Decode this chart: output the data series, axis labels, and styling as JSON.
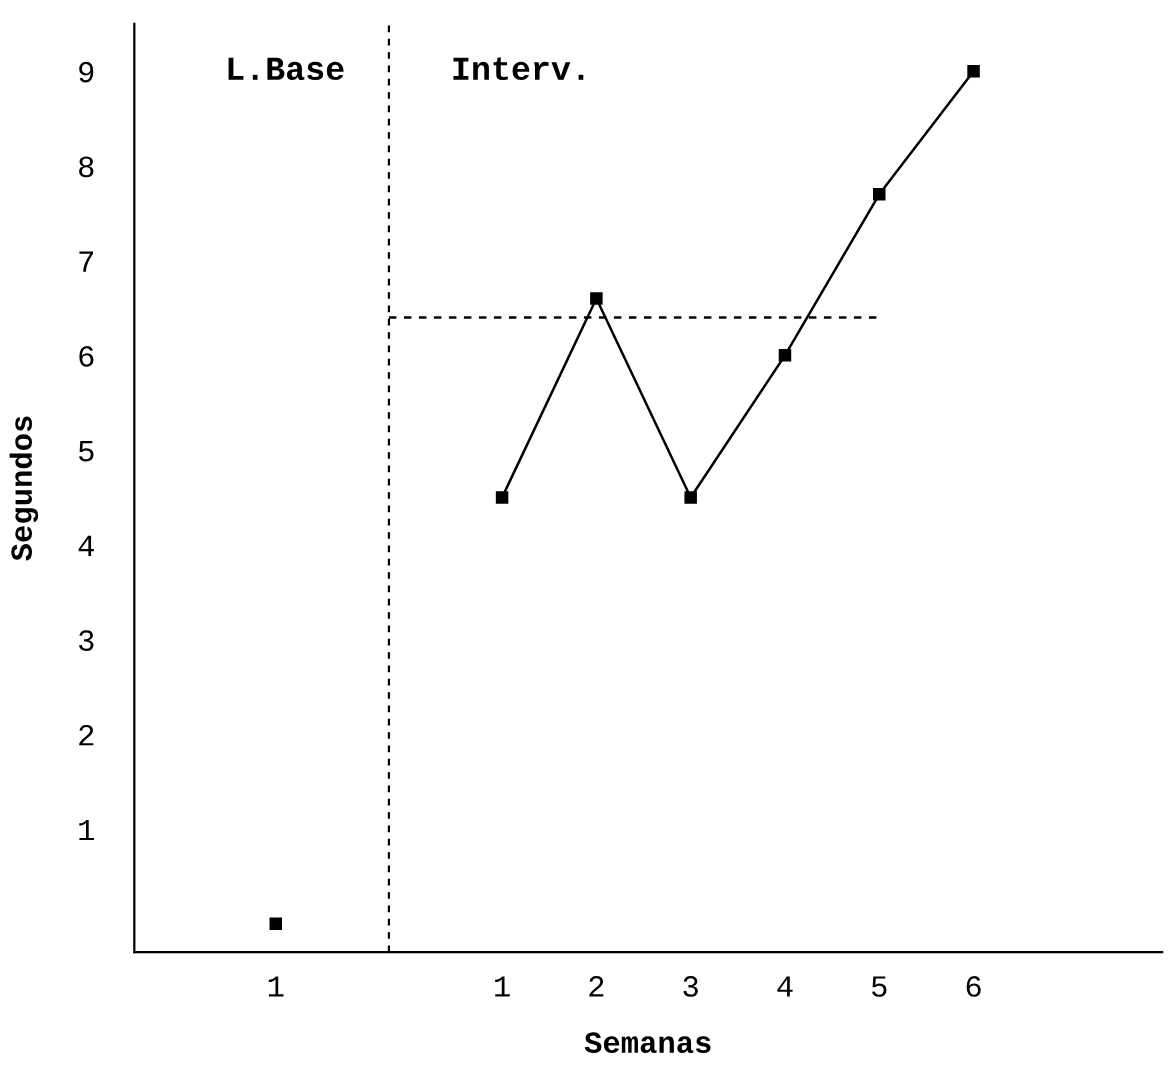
{
  "chart_data": {
    "type": "line",
    "xlabel": "Semanas",
    "ylabel": "Segundos",
    "xlim": [
      -2.9,
      8.0
    ],
    "ylim": [
      -0.3,
      9.5
    ],
    "xticks": [
      {
        "value": -1.4,
        "label": "1"
      },
      1,
      2,
      3,
      4,
      5,
      6
    ],
    "yticks": [
      1,
      2,
      3,
      4,
      5,
      6,
      7,
      8,
      9
    ],
    "series": [
      {
        "type": "scatter",
        "color": "#000000",
        "x": [
          -1.4
        ],
        "values": [
          0.0
        ],
        "marker": "square"
      },
      {
        "color": "#000000",
        "x": [
          1,
          2,
          3,
          4,
          5,
          6
        ],
        "values": [
          4.5,
          6.6,
          4.5,
          6.0,
          7.7,
          9.0
        ],
        "marker": "square",
        "line_style": "solid"
      },
      {
        "type": "line",
        "color": "#000000",
        "x": [
          -0.2,
          5.0
        ],
        "values": [
          6.4,
          6.4
        ],
        "marker": "none",
        "line_style": "dashed"
      }
    ],
    "ref_lines": [
      {
        "axis": "x",
        "value": -0.2,
        "color": "#000000",
        "line_style": "dashed"
      }
    ],
    "annotations": [
      "L.Base",
      "Interv."
    ],
    "grid": false
  }
}
